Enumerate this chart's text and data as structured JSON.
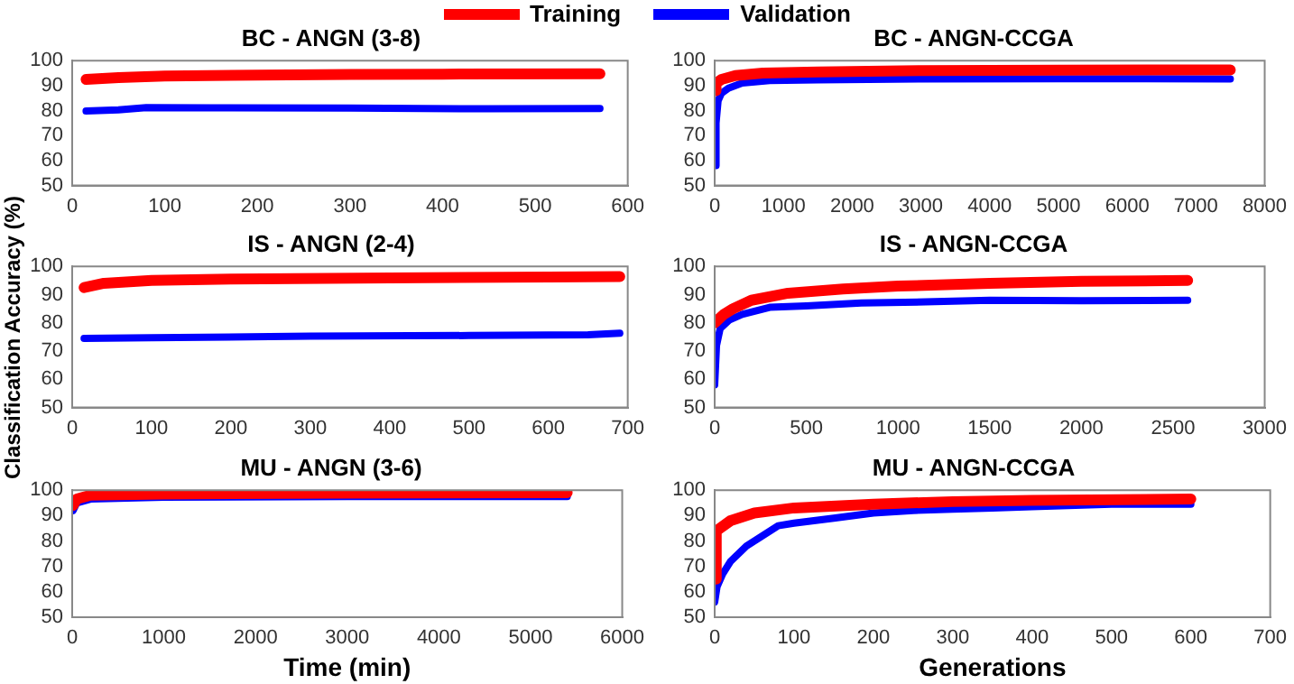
{
  "chart_data": [
    {
      "type": "line",
      "title": "BC - ANGN (3-8)",
      "legend": "top",
      "grid": false,
      "marker": "none",
      "xlim": [
        0,
        600
      ],
      "xticks": [
        0,
        100,
        200,
        300,
        400,
        500,
        600
      ],
      "ylim": [
        50,
        100
      ],
      "yticks": [
        50,
        60,
        70,
        80,
        90,
        100
      ],
      "series": [
        {
          "name": "Training",
          "color": "#ff0000",
          "x": [
            15,
            50,
            100,
            200,
            300,
            400,
            570
          ],
          "values": [
            92.5,
            93.2,
            93.8,
            94.2,
            94.5,
            94.6,
            94.7
          ]
        },
        {
          "name": "Validation",
          "color": "#0000ff",
          "x": [
            15,
            50,
            80,
            150,
            300,
            450,
            570
          ],
          "values": [
            79.8,
            80.3,
            81.2,
            81.1,
            81,
            80.7,
            80.8
          ]
        }
      ]
    },
    {
      "type": "line",
      "title": "BC - ANGN-CCGA",
      "grid": false,
      "marker": "none",
      "xlim": [
        0,
        8000
      ],
      "xticks": [
        0,
        1000,
        2000,
        3000,
        4000,
        5000,
        6000,
        7000,
        8000
      ],
      "ylim": [
        50,
        100
      ],
      "yticks": [
        50,
        60,
        70,
        80,
        90,
        100
      ],
      "series": [
        {
          "color": "#ff0000",
          "x": [
            0,
            20,
            100,
            300,
            700,
            1500,
            3000,
            5000,
            7500
          ],
          "values": [
            88,
            91,
            92.5,
            94,
            95,
            95.5,
            96,
            96.2,
            96.3
          ]
        },
        {
          "color": "#0000ff",
          "x": [
            0,
            20,
            50,
            100,
            200,
            400,
            800,
            1500,
            3000,
            5000,
            7500
          ],
          "values": [
            58,
            75,
            84,
            87,
            89,
            91,
            92,
            92.3,
            92.7,
            92.8,
            92.7
          ]
        }
      ]
    },
    {
      "type": "line",
      "title": "IS - ANGN (2-4)",
      "ylabel": "Classification Accuracy (%)",
      "grid": false,
      "marker": "none",
      "xlim": [
        0,
        700
      ],
      "xticks": [
        0,
        100,
        200,
        300,
        400,
        500,
        600,
        700
      ],
      "ylim": [
        50,
        100
      ],
      "yticks": [
        50,
        60,
        70,
        80,
        90,
        100
      ],
      "series": [
        {
          "color": "#ff0000",
          "x": [
            15,
            40,
            100,
            200,
            400,
            600,
            690
          ],
          "values": [
            92.5,
            94,
            95,
            95.5,
            95.9,
            96.2,
            96.4
          ]
        },
        {
          "color": "#0000ff",
          "x": [
            15,
            100,
            300,
            500,
            650,
            690
          ],
          "values": [
            74.5,
            74.7,
            75.3,
            75.5,
            75.8,
            76.3
          ]
        }
      ]
    },
    {
      "type": "line",
      "title": "IS - ANGN-CCGA",
      "grid": false,
      "marker": "none",
      "xlim": [
        0,
        3000
      ],
      "xticks": [
        0,
        500,
        1000,
        1500,
        2000,
        2500,
        3000
      ],
      "ylim": [
        50,
        100
      ],
      "yticks": [
        50,
        60,
        70,
        80,
        90,
        100
      ],
      "series": [
        {
          "color": "#ff0000",
          "x": [
            0,
            50,
            100,
            200,
            400,
            700,
            1000,
            1500,
            2000,
            2580
          ],
          "values": [
            80,
            83,
            85,
            88,
            90.5,
            92,
            93,
            94,
            94.7,
            95
          ]
        },
        {
          "color": "#0000ff",
          "x": [
            0,
            10,
            30,
            80,
            150,
            300,
            500,
            800,
            1200,
            1500,
            2000,
            2580
          ],
          "values": [
            58,
            72,
            78,
            81,
            83,
            85.5,
            86,
            87,
            87.5,
            88,
            87.8,
            88
          ]
        }
      ]
    },
    {
      "type": "line",
      "title": "MU - ANGN (3-6)",
      "xlabel": "Time (min)",
      "grid": false,
      "marker": "none",
      "xlim": [
        0,
        6000
      ],
      "xticks": [
        0,
        1000,
        2000,
        3000,
        4000,
        5000,
        6000
      ],
      "ylim": [
        50,
        100
      ],
      "yticks": [
        50,
        60,
        70,
        80,
        90,
        100
      ],
      "series": [
        {
          "color": "#ff0000",
          "x": [
            10,
            50,
            200,
            1000,
            3000,
            5400
          ],
          "values": [
            94,
            96.5,
            98,
            98.5,
            98.8,
            99
          ]
        },
        {
          "color": "#0000ff",
          "x": [
            10,
            50,
            200,
            1000,
            3000,
            4200,
            5400
          ],
          "values": [
            92,
            95,
            96.5,
            97.2,
            97.5,
            97.5,
            97.5
          ]
        }
      ]
    },
    {
      "type": "line",
      "title": "MU - ANGN-CCGA",
      "xlabel": "Generations",
      "grid": false,
      "marker": "none",
      "xlim": [
        0,
        700
      ],
      "xticks": [
        0,
        100,
        200,
        300,
        400,
        500,
        600,
        700
      ],
      "ylim": [
        50,
        100
      ],
      "yticks": [
        50,
        60,
        70,
        80,
        90,
        100
      ],
      "series": [
        {
          "color": "#ff0000",
          "x": [
            0,
            2,
            20,
            50,
            100,
            200,
            300,
            400,
            600
          ],
          "values": [
            65,
            84,
            88,
            91,
            93,
            94.5,
            95.5,
            96,
            96.5
          ]
        },
        {
          "color": "#0000ff",
          "x": [
            0,
            3,
            10,
            20,
            40,
            60,
            80,
            100,
            150,
            200,
            250,
            300,
            350,
            400,
            500,
            600
          ],
          "values": [
            56,
            62,
            67,
            72,
            78,
            82,
            86,
            87,
            89,
            91,
            92,
            92.5,
            93,
            93.5,
            94.5,
            94.5
          ]
        }
      ]
    }
  ]
}
